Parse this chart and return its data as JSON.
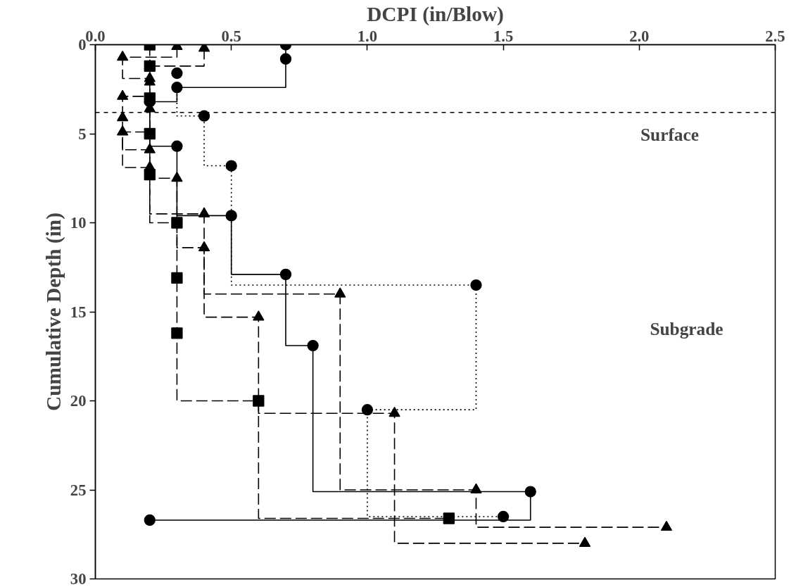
{
  "chart_data": {
    "type": "step",
    "xlabel": "DCPI (in/Blow)",
    "ylabel": "Cumulative Depth (in)",
    "xlim": [
      0,
      2.5
    ],
    "xticks": [
      {
        "value": 0,
        "label": "0.0"
      },
      {
        "value": 0.5,
        "label": "0.5"
      },
      {
        "value": 1,
        "label": "1.0"
      },
      {
        "value": 1.5,
        "label": "1.5"
      },
      {
        "value": 2,
        "label": "2.0"
      },
      {
        "value": 2.5,
        "label": "2.5"
      }
    ],
    "ylim": [
      30,
      0
    ],
    "yticks": [
      0,
      5,
      10,
      15,
      20,
      25,
      30
    ],
    "grid": false,
    "series": [
      {
        "color": "#000000",
        "marker": "circle",
        "line_style": "solid",
        "x": [
          0.7,
          0.7,
          0.3,
          0.2,
          0.3,
          0.5,
          0.7,
          0.8,
          1.6,
          0.2
        ],
        "values": [
          0,
          0.8,
          2.4,
          3.2,
          5.7,
          9.6,
          12.9,
          16.9,
          25.1,
          26.7
        ]
      },
      {
        "color": "#000000",
        "marker": "square",
        "line_style": "dashed",
        "x": [
          0.2,
          0.2,
          0.2,
          0.2,
          0.2,
          0.3,
          0.3,
          0.3,
          0.6,
          1.3
        ],
        "values": [
          0,
          1.2,
          3.0,
          5.0,
          7.3,
          10.0,
          13.1,
          16.2,
          20.0,
          26.6
        ]
      },
      {
        "color": "#000000",
        "marker": "triangle",
        "line_style": "dashed",
        "x": [
          0.4,
          0.2,
          0.2,
          0.1,
          0.1,
          0.2,
          0.3,
          0.4,
          0.6,
          1.1,
          1.8
        ],
        "values": [
          0.2,
          1.2,
          2.1,
          2.9,
          4.1,
          5.9,
          7.5,
          11.4,
          15.3,
          20.7,
          28.0
        ]
      },
      {
        "color": "#000000",
        "marker": "circle",
        "line_style": "dotted",
        "x": [
          0.3,
          0.4,
          0.5,
          1.4,
          1.0,
          1.5
        ],
        "values": [
          1.6,
          4.0,
          6.8,
          13.5,
          20.5,
          26.5
        ]
      },
      {
        "color": "#000000",
        "marker": "triangle",
        "line_style": "dashed",
        "x": [
          0.3,
          0.1,
          0.2,
          0.2,
          0.1,
          0.2,
          0.4,
          0.9,
          1.4,
          2.1
        ],
        "values": [
          0.1,
          0.7,
          1.9,
          3.6,
          4.9,
          6.9,
          9.5,
          14.0,
          25.0,
          27.1
        ]
      }
    ],
    "ref_lines": [
      {
        "axis": "y",
        "value": 3.8,
        "line_style": "dashed"
      }
    ],
    "annotations": [
      "Surface",
      "Subgrade"
    ]
  }
}
